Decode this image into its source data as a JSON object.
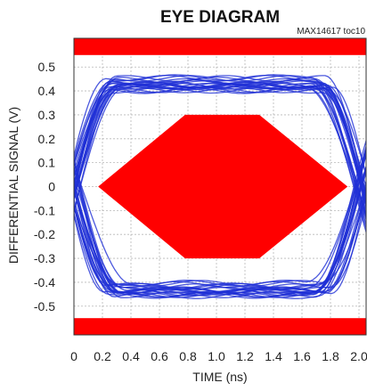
{
  "chart_data": {
    "type": "line",
    "title": "EYE DIAGRAM",
    "figure_ref": "MAX14617 toc10",
    "xlabel": "TIME (ns)",
    "ylabel": "DIFFERENTIAL SIGNAL (V)",
    "xlim": [
      0,
      2.05
    ],
    "ylim": [
      -0.62,
      0.62
    ],
    "x_ticks": [
      "0",
      "0.2",
      "0.4",
      "0.6",
      "0.8",
      "1.0",
      "1.2",
      "1.4",
      "1.6",
      "1.8",
      "2.0"
    ],
    "x_tick_values": [
      0,
      0.2,
      0.4,
      0.6,
      0.8,
      1.0,
      1.2,
      1.4,
      1.6,
      1.8,
      2.0
    ],
    "y_ticks": [
      "0.5",
      "0.4",
      "0.3",
      "0.2",
      "0.1",
      "0",
      "-0.1",
      "-0.2",
      "-0.3",
      "-0.4",
      "-0.5"
    ],
    "y_tick_values": [
      0.5,
      0.4,
      0.3,
      0.2,
      0.1,
      0,
      -0.1,
      -0.2,
      -0.3,
      -0.4,
      -0.5
    ],
    "grid": true,
    "colors": {
      "traces": "#1f2fd6",
      "mask": "#ff0000",
      "grid": "#b8b8b8"
    },
    "mask": {
      "top_band": [
        0.55,
        0.62
      ],
      "bottom_band": [
        -0.62,
        -0.55
      ],
      "center_polygon": [
        [
          0.17,
          0
        ],
        [
          0.78,
          0.3
        ],
        [
          1.3,
          0.3
        ],
        [
          1.92,
          0
        ],
        [
          1.3,
          -0.3
        ],
        [
          0.78,
          -0.3
        ]
      ]
    },
    "eye": {
      "high_level": 0.43,
      "low_level": -0.43,
      "crossing_times": [
        0.0,
        2.02
      ],
      "transition_half_width": 0.3
    }
  }
}
